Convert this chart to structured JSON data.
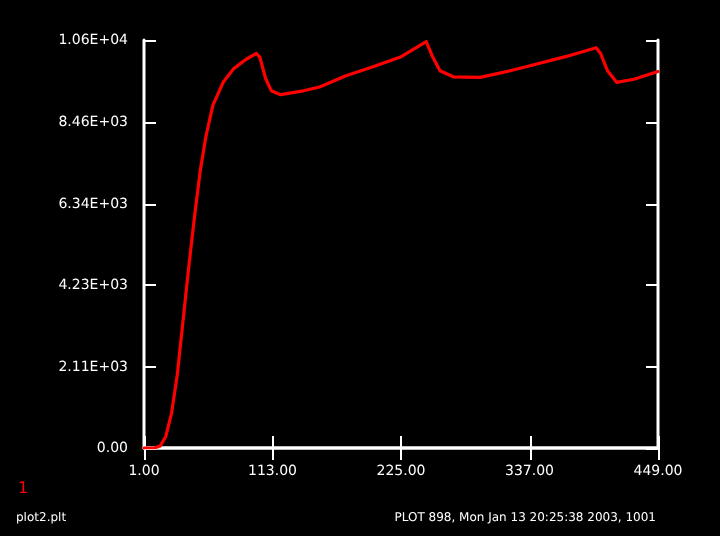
{
  "chart_data": {
    "type": "line",
    "x": [
      1,
      10,
      15,
      20,
      25,
      30,
      35,
      40,
      45,
      50,
      55,
      61,
      70,
      79,
      90,
      99,
      102,
      107,
      112,
      120,
      140,
      154,
      177,
      200,
      224,
      247,
      252,
      259,
      271,
      294,
      320,
      340,
      370,
      395,
      399,
      405,
      413,
      428,
      449
    ],
    "series": [
      {
        "name": "1",
        "color": "#ff0000",
        "values": [
          0,
          0,
          50,
          300,
          900,
          1900,
          3300,
          4700,
          6000,
          7200,
          8100,
          8900,
          9500,
          9850,
          10100,
          10250,
          10150,
          9600,
          9280,
          9180,
          9280,
          9380,
          9670,
          9900,
          10150,
          10560,
          10200,
          9800,
          9640,
          9630,
          9800,
          9950,
          10180,
          10400,
          10250,
          9800,
          9500,
          9580,
          9780
        ]
      }
    ],
    "xlim": [
      1,
      449
    ],
    "xticks": [
      {
        "value": 1,
        "label": "1.00"
      },
      {
        "value": 113,
        "label": "113.00"
      },
      {
        "value": 225,
        "label": "225.00"
      },
      {
        "value": 337,
        "label": "337.00"
      },
      {
        "value": 449,
        "label": "449.00"
      }
    ],
    "ylim": [
      0,
      10600
    ],
    "yticks": [
      {
        "value": 0,
        "label": "0.00"
      },
      {
        "value": 2110,
        "label": "2.11E+03"
      },
      {
        "value": 4230,
        "label": "4.23E+03"
      },
      {
        "value": 6340,
        "label": "6.34E+03"
      },
      {
        "value": 8460,
        "label": "8.46E+03"
      },
      {
        "value": 10600,
        "label": "1.06E+04"
      }
    ],
    "grid": false,
    "legend": "bottom left",
    "marker": "none",
    "line_style": "solid",
    "annotations": [
      "plot2.plt",
      "PLOT 898, Mon Jan 13 20:25:38 2003, 1001"
    ]
  }
}
